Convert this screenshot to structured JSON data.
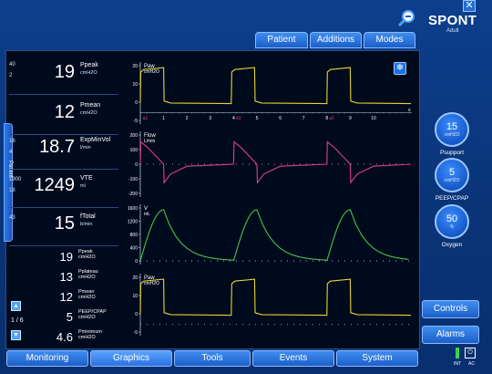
{
  "header": {
    "mode": "SPONT",
    "mode_sub": "Adult",
    "tabs": [
      "Patient",
      "Additions",
      "Modes"
    ]
  },
  "side_tab_label": "Patient",
  "params": [
    {
      "lim_hi": "40",
      "lim_lo": "2",
      "value": "19",
      "label": "Ppeak",
      "unit": "cmH2O"
    },
    {
      "lim_hi": "",
      "lim_lo": "",
      "value": "12",
      "label": "Pmean",
      "unit": "cmH2O"
    },
    {
      "lim_hi": "16",
      "lim_lo": "4",
      "value": "18.7",
      "label": "ExpMinVol",
      "unit": "l/min"
    },
    {
      "lim_hi": "1900",
      "lim_lo": "18",
      "value": "1249",
      "label": "VTE",
      "unit": "ml"
    },
    {
      "lim_hi": "43",
      "lim_lo": "",
      "value": "15",
      "label": "fTotal",
      "unit": "b/min"
    }
  ],
  "secondary": [
    {
      "value": "19",
      "label": "Ppeak",
      "unit": "cmH2O"
    },
    {
      "value": "13",
      "label": "Pplateau",
      "unit": "cmH2O"
    },
    {
      "value": "12",
      "label": "Pmean",
      "unit": "cmH2O"
    },
    {
      "value": "5",
      "label": "PEEP/CPAP",
      "unit": "cmH2O"
    },
    {
      "value": "4.6",
      "label": "Pminimum",
      "unit": "cmH2O"
    }
  ],
  "page": "1 / 6",
  "waveforms": {
    "paw": {
      "label": "Paw",
      "unit": "cmH2O",
      "ticks": [
        "20",
        "10",
        "0",
        "-5"
      ]
    },
    "flow": {
      "label": "Flow",
      "unit": "L/min",
      "ticks": [
        "200",
        "100",
        "0",
        "-100",
        "-200"
      ]
    },
    "volume": {
      "label": "V",
      "unit": "mL",
      "ticks": [
        "1600",
        "1200",
        "800",
        "400",
        "0"
      ]
    },
    "paw2": {
      "label": "Paw",
      "unit": "cmH2O",
      "ticks": [
        "20",
        "10",
        "0",
        "-5"
      ]
    },
    "time_ticks": [
      "1",
      "2",
      "3",
      "4",
      "5",
      "6",
      "7",
      "8",
      "9",
      "10"
    ],
    "time_unit": "s",
    "breath_markers": [
      "a1",
      "a1",
      "a1"
    ],
    "colors": {
      "pressure": "#e5d430",
      "flow": "#e03d8e",
      "volume": "#47c247"
    }
  },
  "controls": [
    {
      "value": "15",
      "unit": "cmH2O",
      "label": "Psupport"
    },
    {
      "value": "5",
      "unit": "cmH2O",
      "label": "PEEP/CPAP"
    },
    {
      "value": "50",
      "unit": "%",
      "label": "Oxygen"
    }
  ],
  "buttons": {
    "controls": "Controls",
    "alarms": "Alarms"
  },
  "nav": [
    "Monitoring",
    "Graphics",
    "Tools",
    "Events",
    "System"
  ],
  "status": {
    "int": "INT",
    "ac": "AC"
  }
}
